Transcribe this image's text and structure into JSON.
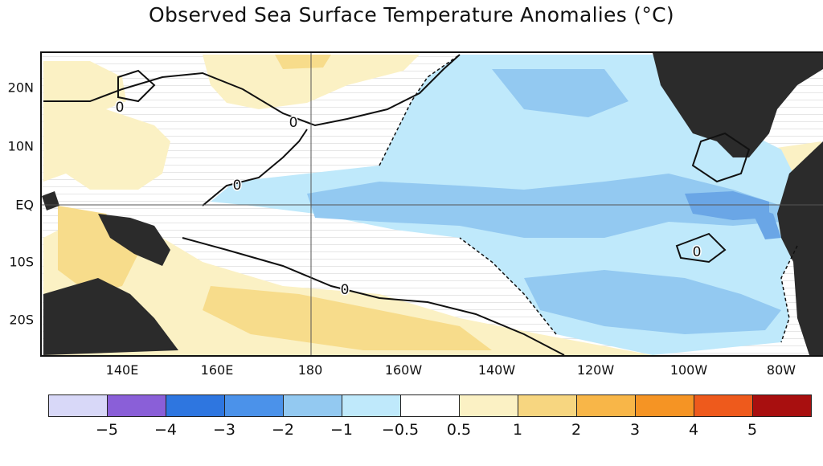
{
  "title": "Observed Sea Surface Temperature Anomalies (°C)",
  "colors": {
    "land": "#2b2b2b",
    "warm1": "#fbf1c4",
    "warm2": "#f7dc8b",
    "cool1": "#bfe9fb",
    "cool2": "#93c9f1",
    "cool3": "#6aa6e6"
  },
  "map": {
    "latitude_labels": [
      {
        "label": "20N",
        "lat": 20
      },
      {
        "label": "10N",
        "lat": 10
      },
      {
        "label": "EQ",
        "lat": 0
      },
      {
        "label": "10S",
        "lat": -10
      },
      {
        "label": "20S",
        "lat": -20
      }
    ],
    "longitude_labels": [
      {
        "label": "140E",
        "lon": 140
      },
      {
        "label": "160E",
        "lon": 160
      },
      {
        "label": "180",
        "lon": 180
      },
      {
        "label": "160W",
        "lon": 200
      },
      {
        "label": "140W",
        "lon": 220
      },
      {
        "label": "120W",
        "lon": 240
      },
      {
        "label": "100W",
        "lon": 260
      },
      {
        "label": "80W",
        "lon": 280
      }
    ],
    "contour_label": "0"
  },
  "colorbar": {
    "colors": [
      "#d8d8f8",
      "#8a5fd8",
      "#2e76e0",
      "#4b92ea",
      "#93c9f1",
      "#bfe9fb",
      "#ffffff",
      "#fbf1c4",
      "#f7d680",
      "#f8b648",
      "#f59424",
      "#ee5a1c",
      "#a80f0f"
    ],
    "labels": [
      "−5",
      "−4",
      "−3",
      "−2",
      "−1",
      "−0.5",
      "0.5",
      "1",
      "2",
      "3",
      "4",
      "5"
    ]
  }
}
